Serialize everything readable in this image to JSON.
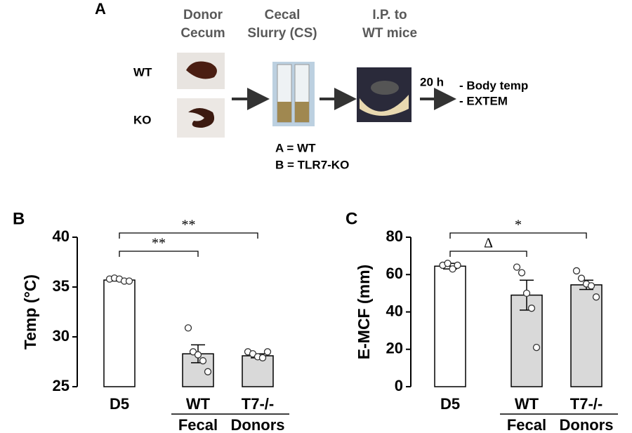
{
  "panel_a": {
    "letter": "A",
    "steps": [
      [
        "Donor",
        "Cecum"
      ],
      [
        "Cecal",
        "Slurry (CS)"
      ],
      [
        "I.P. to",
        "WT mice"
      ]
    ],
    "rows": [
      "WT",
      "KO"
    ],
    "time": "20 h",
    "outcomes": [
      "- Body temp",
      "- EXTEM"
    ],
    "tube_key": [
      "A = WT",
      "B = TLR7-KO"
    ]
  },
  "chart_data": [
    {
      "type": "bar",
      "letter": "B",
      "ylabel": "Temp (°C)",
      "categories": [
        "D5",
        "WT",
        "T7-/-"
      ],
      "group_labels": [
        "Fecal",
        "Donors"
      ],
      "values": [
        35.7,
        28.3,
        28.1
      ],
      "errors": [
        0.1,
        0.9,
        0.2
      ],
      "points": [
        [
          35.8,
          35.9,
          35.8,
          35.6,
          35.6
        ],
        [
          30.9,
          28.5,
          28.2,
          27.6,
          26.5
        ],
        [
          28.5,
          28.3,
          28.0,
          27.9,
          28.5
        ]
      ],
      "colors": [
        "#ffffff",
        "#d9d9d9",
        "#d9d9d9"
      ],
      "ylim": [
        25,
        40
      ],
      "yticks": [
        25,
        30,
        35,
        40
      ],
      "annotations": [
        {
          "from": 0,
          "to": 2,
          "label": "**"
        },
        {
          "from": 0,
          "to": 1,
          "label": "**"
        }
      ]
    },
    {
      "type": "bar",
      "letter": "C",
      "ylabel": "E-MCF (mm)",
      "categories": [
        "D5",
        "WT",
        "T7-/-"
      ],
      "group_labels": [
        "Fecal",
        "Donors"
      ],
      "values": [
        64.5,
        49,
        54.5
      ],
      "errors": [
        1.5,
        8,
        2.5
      ],
      "points": [
        [
          65,
          66,
          63,
          65
        ],
        [
          64,
          61,
          50,
          42,
          21
        ],
        [
          62,
          58,
          55,
          54,
          48
        ]
      ],
      "colors": [
        "#ffffff",
        "#d9d9d9",
        "#d9d9d9"
      ],
      "ylim": [
        0,
        80
      ],
      "yticks": [
        0,
        20,
        40,
        60,
        80
      ],
      "annotations": [
        {
          "from": 0,
          "to": 2,
          "label": "*"
        },
        {
          "from": 0,
          "to": 1,
          "label": "Δ"
        }
      ]
    }
  ]
}
